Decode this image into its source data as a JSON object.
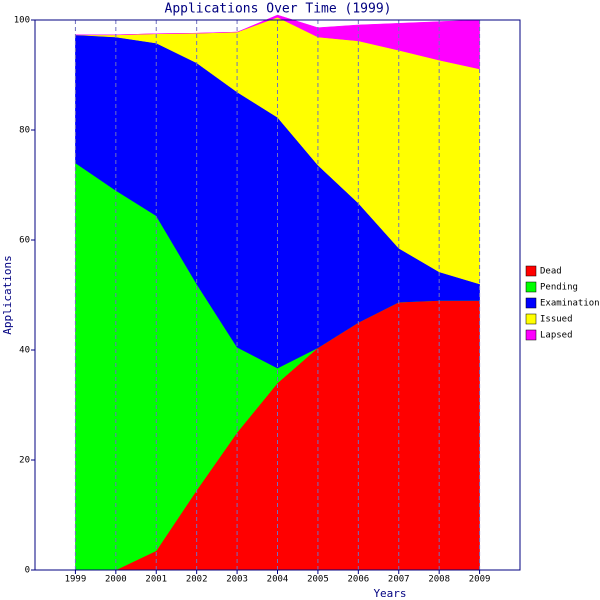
{
  "chart_data": {
    "type": "stacked-area",
    "title": "Applications Over Time (1999)",
    "x_label": "Years",
    "y_label": "Applications",
    "x": [
      1999,
      2000,
      2001,
      2002,
      2003,
      2004,
      2005,
      2006,
      2007,
      2008,
      2009
    ],
    "xlim": [
      1998,
      2010
    ],
    "xticks": [
      1999,
      2000,
      2001,
      2002,
      2003,
      2004,
      2005,
      2006,
      2007,
      2008,
      2009
    ],
    "ylim": [
      0,
      100
    ],
    "yticks": [
      0,
      20,
      40,
      60,
      80,
      100
    ],
    "grid": "x",
    "legend": "right",
    "series": [
      {
        "name": "Dead",
        "color": "#ff0000",
        "values": [
          0,
          0,
          3.5,
          14.5,
          25,
          34,
          40.4,
          45,
          48.7,
          49,
          49
        ]
      },
      {
        "name": "Pending",
        "color": "#00ff00",
        "values": [
          74,
          69,
          60.9,
          37.5,
          15.5,
          2.7,
          0,
          0,
          0,
          0,
          0
        ]
      },
      {
        "name": "Examination",
        "color": "#0000ff",
        "values": [
          23.3,
          27.9,
          31.4,
          40.2,
          46.4,
          45.6,
          33.2,
          21.7,
          9.8,
          5.2,
          3.0
        ]
      },
      {
        "name": "Issued",
        "color": "#ffff00",
        "values": [
          0,
          0.4,
          1.7,
          5.4,
          10.9,
          18.2,
          23.3,
          29.5,
          36,
          38.5,
          39.1
        ]
      },
      {
        "name": "Lapsed",
        "color": "#ff00ff",
        "values": [
          0,
          0,
          0,
          0,
          0,
          0.4,
          1.7,
          2.9,
          4.9,
          7,
          8.9
        ]
      }
    ]
  }
}
